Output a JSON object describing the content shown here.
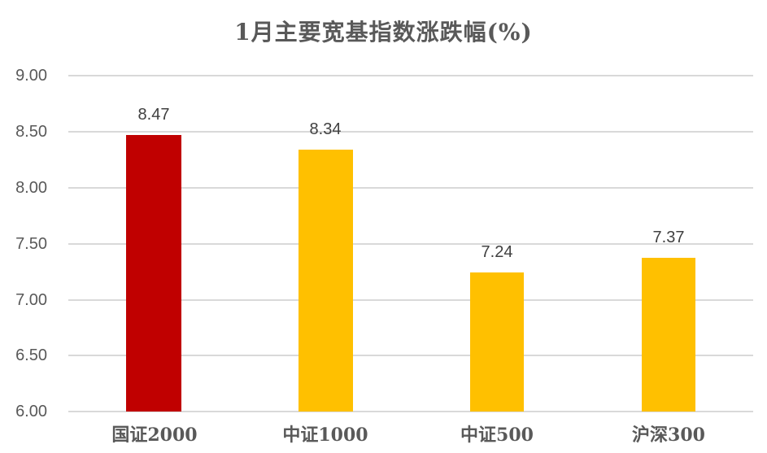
{
  "chart_data": {
    "type": "bar",
    "title": "1月主要宽基指数涨跌幅(%)",
    "xlabel": "",
    "ylabel": "",
    "categories": [
      "国证2000",
      "中证1000",
      "中证500",
      "沪深300"
    ],
    "values": [
      8.47,
      8.34,
      7.24,
      7.37
    ],
    "value_labels": [
      "8.47",
      "8.34",
      "7.24",
      "7.37"
    ],
    "bar_colors": [
      "#C00000",
      "#FFC000",
      "#FFC000",
      "#FFC000"
    ],
    "ylim": [
      6.0,
      9.0
    ],
    "yticks": [
      "9.00",
      "8.50",
      "8.00",
      "7.50",
      "7.00",
      "6.50",
      "6.00"
    ],
    "grid": true,
    "legend": null
  },
  "colors": {
    "highlight": "#C00000",
    "default": "#FFC000",
    "grid": "#D9D9D9",
    "text": "#595959"
  }
}
